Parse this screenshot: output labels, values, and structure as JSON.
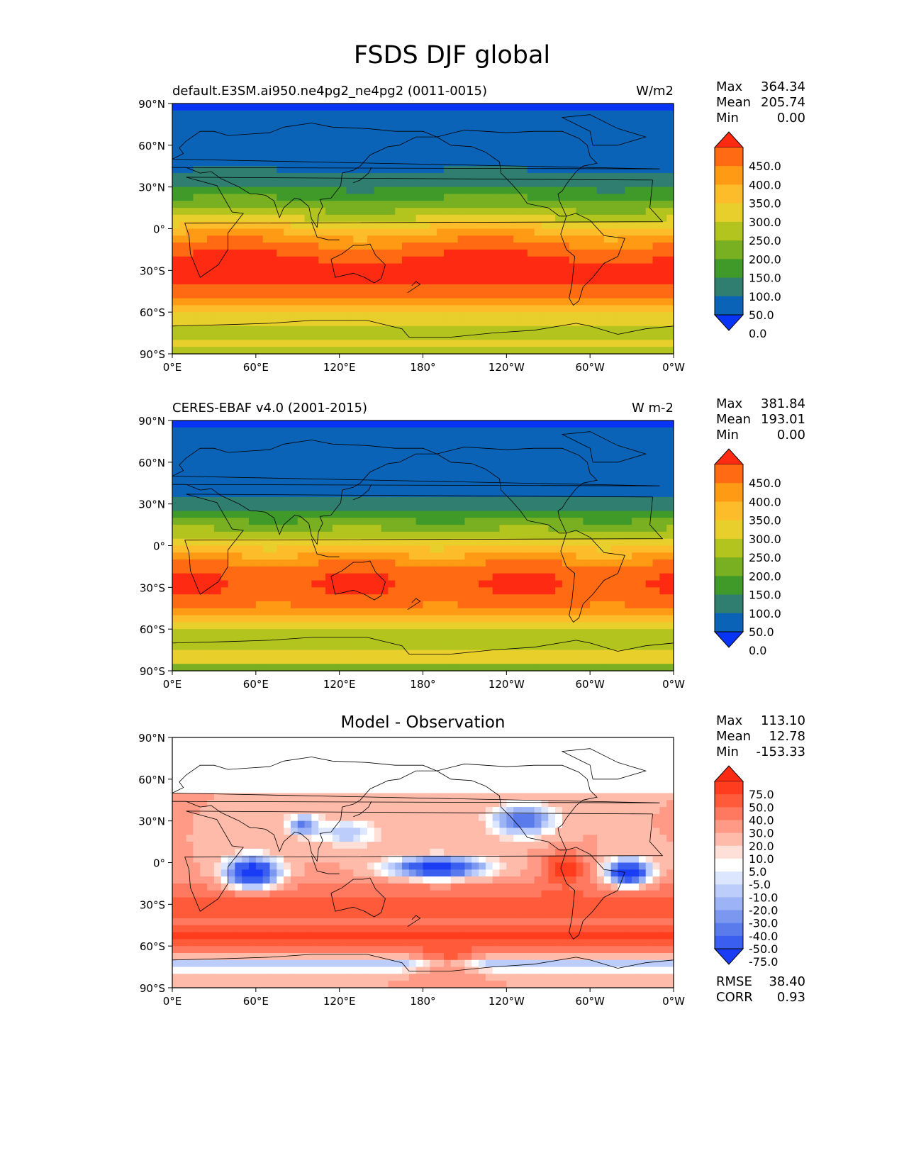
{
  "figure": {
    "title": "FSDS DJF global"
  },
  "axes": {
    "lat_ticks": [
      "90°N",
      "60°N",
      "30°N",
      "0°",
      "30°S",
      "60°S",
      "90°S"
    ],
    "lon_ticks": [
      "0°E",
      "60°E",
      "120°E",
      "180°",
      "120°W",
      "60°W",
      "0°W"
    ]
  },
  "panels": [
    {
      "left_title": "default.E3SM.ai950.ne4pg2_ne4pg2 (0011-0015)",
      "right_title": "W/m2",
      "center_title": "",
      "stats": [
        {
          "label": "Max",
          "value": "364.34"
        },
        {
          "label": "Mean",
          "value": "205.74"
        },
        {
          "label": "Min",
          "value": "0.00"
        }
      ],
      "colorbar": {
        "labels": [
          "450.0",
          "400.0",
          "350.0",
          "300.0",
          "250.0",
          "200.0",
          "150.0",
          "100.0",
          "50.0",
          "0.0"
        ],
        "colors": [
          "#ff2a12",
          "#ff6a12",
          "#ff9a14",
          "#fdbc2a",
          "#e8cf2b",
          "#b3c41f",
          "#78b022",
          "#3f9a2a",
          "#2f7e70",
          "#0a63b6",
          "#0835f5"
        ]
      }
    },
    {
      "left_title": "CERES-EBAF v4.0 (2001-2015)",
      "right_title": "W m-2",
      "center_title": "",
      "stats": [
        {
          "label": "Max",
          "value": "381.84"
        },
        {
          "label": "Mean",
          "value": "193.01"
        },
        {
          "label": "Min",
          "value": "0.00"
        }
      ],
      "colorbar": {
        "labels": [
          "450.0",
          "400.0",
          "350.0",
          "300.0",
          "250.0",
          "200.0",
          "150.0",
          "100.0",
          "50.0",
          "0.0"
        ],
        "colors": [
          "#ff2a12",
          "#ff6a12",
          "#ff9a14",
          "#fdbc2a",
          "#e8cf2b",
          "#b3c41f",
          "#78b022",
          "#3f9a2a",
          "#2f7e70",
          "#0a63b6",
          "#0835f5"
        ]
      }
    },
    {
      "left_title": "",
      "right_title": "",
      "center_title": "Model - Observation",
      "stats": [
        {
          "label": "Max",
          "value": "113.10"
        },
        {
          "label": "Mean",
          "value": "12.78"
        },
        {
          "label": "Min",
          "value": "-153.33"
        }
      ],
      "colorbar": {
        "labels": [
          "75.0",
          "50.0",
          "40.0",
          "30.0",
          "20.0",
          "10.0",
          "5.0",
          "-5.0",
          "-10.0",
          "-20.0",
          "-30.0",
          "-40.0",
          "-50.0",
          "-75.0"
        ],
        "colors": [
          "#ff2a12",
          "#ff3d1e",
          "#ff5a3a",
          "#ff7860",
          "#ff9a86",
          "#ffbbaa",
          "#ffe0d8",
          "#ffffff",
          "#dde6ff",
          "#bccdfb",
          "#9cb3f6",
          "#7b97f0",
          "#5a7bec",
          "#3a5ff0",
          "#1a3cf5"
        ]
      },
      "rmse": [
        {
          "label": "RMSE",
          "value": "38.40"
        },
        {
          "label": "CORR",
          "value": "0.93"
        }
      ]
    }
  ]
}
